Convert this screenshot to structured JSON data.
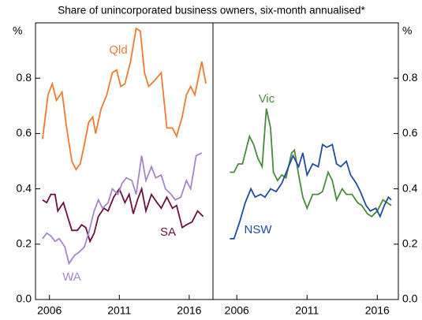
{
  "chart_data": [
    {
      "type": "line",
      "subtitle": "Share of unincorporated business owners, six-month annualised*",
      "ylabel": "%",
      "ylim": [
        0,
        1.0
      ],
      "yticks": [
        {
          "value": 0,
          "label": "0.0"
        },
        0.2,
        0.4,
        0.6,
        0.8
      ],
      "xlim": [
        2005.0,
        2017.7
      ],
      "xticks": [
        2006,
        2011,
        2016
      ],
      "series": [
        {
          "name": "Qld",
          "color": "#ef7b31",
          "x": [
            2005.5,
            2005.9,
            2006.2,
            2006.5,
            2006.9,
            2007.2,
            2007.6,
            2007.9,
            2008.2,
            2008.5,
            2008.8,
            2009.1,
            2009.3,
            2009.7,
            2010.1,
            2010.5,
            2010.8,
            2011.1,
            2011.4,
            2011.8,
            2012.2,
            2012.5,
            2012.8,
            2013.1,
            2013.5,
            2014.0,
            2014.4,
            2014.8,
            2015.1,
            2015.5,
            2015.8,
            2016.1,
            2016.4,
            2016.9,
            2017.2
          ],
          "values": [
            0.58,
            0.74,
            0.78,
            0.72,
            0.75,
            0.63,
            0.5,
            0.47,
            0.49,
            0.56,
            0.64,
            0.66,
            0.6,
            0.69,
            0.74,
            0.82,
            0.83,
            0.77,
            0.78,
            0.86,
            0.98,
            0.97,
            0.82,
            0.77,
            0.79,
            0.82,
            0.62,
            0.62,
            0.59,
            0.66,
            0.74,
            0.77,
            0.74,
            0.86,
            0.78
          ]
        },
        {
          "name": "SA",
          "color": "#6b1142",
          "x": [
            2005.5,
            2005.8,
            2006.1,
            2006.4,
            2006.6,
            2007.0,
            2007.3,
            2007.6,
            2008.0,
            2008.3,
            2008.6,
            2008.9,
            2009.2,
            2009.5,
            2009.9,
            2010.2,
            2010.6,
            2011.0,
            2011.4,
            2011.7,
            2012.0,
            2012.3,
            2012.6,
            2012.9,
            2013.3,
            2013.7,
            2014.0,
            2014.4,
            2014.8,
            2015.1,
            2015.5,
            2015.8,
            2016.2,
            2016.6,
            2017.0
          ],
          "values": [
            0.36,
            0.35,
            0.38,
            0.38,
            0.32,
            0.35,
            0.3,
            0.25,
            0.25,
            0.27,
            0.26,
            0.21,
            0.24,
            0.3,
            0.33,
            0.32,
            0.37,
            0.4,
            0.35,
            0.38,
            0.31,
            0.36,
            0.4,
            0.32,
            0.38,
            0.35,
            0.33,
            0.37,
            0.33,
            0.34,
            0.26,
            0.27,
            0.28,
            0.32,
            0.3
          ]
        },
        {
          "name": "WA",
          "color": "#a686c9",
          "x": [
            2005.5,
            2005.8,
            2006.1,
            2006.4,
            2006.7,
            2007.1,
            2007.4,
            2007.8,
            2008.1,
            2008.5,
            2008.8,
            2009.2,
            2009.5,
            2009.8,
            2010.2,
            2010.5,
            2010.9,
            2011.2,
            2011.5,
            2011.9,
            2012.2,
            2012.6,
            2012.9,
            2013.3,
            2013.6,
            2014.0,
            2014.3,
            2014.7,
            2015.0,
            2015.4,
            2015.8,
            2016.1,
            2016.5,
            2016.9
          ],
          "values": [
            0.22,
            0.24,
            0.23,
            0.21,
            0.22,
            0.19,
            0.13,
            0.16,
            0.17,
            0.19,
            0.24,
            0.32,
            0.36,
            0.33,
            0.35,
            0.4,
            0.38,
            0.42,
            0.44,
            0.43,
            0.38,
            0.52,
            0.43,
            0.48,
            0.44,
            0.45,
            0.4,
            0.38,
            0.36,
            0.37,
            0.43,
            0.4,
            0.52,
            0.53
          ]
        }
      ]
    },
    {
      "type": "line",
      "ylabel": "%",
      "ylim": [
        0,
        1.0
      ],
      "yticks": [
        {
          "value": 0,
          "label": "0.0"
        },
        0.2,
        0.4,
        0.6,
        0.8
      ],
      "xlim": [
        2004.3,
        2017.5
      ],
      "xticks": [
        2006,
        2011,
        2016
      ],
      "series": [
        {
          "name": "Vic",
          "color": "#4a8a3c",
          "x": [
            2005.5,
            2005.8,
            2006.1,
            2006.4,
            2006.9,
            2007.2,
            2007.5,
            2007.8,
            2008.1,
            2008.4,
            2008.6,
            2008.9,
            2009.2,
            2009.5,
            2009.9,
            2010.1,
            2010.4,
            2010.7,
            2011.0,
            2011.4,
            2011.8,
            2012.1,
            2012.5,
            2012.8,
            2013.1,
            2013.5,
            2013.8,
            2014.2,
            2014.6,
            2014.9,
            2015.3,
            2015.6,
            2016.0,
            2016.4,
            2016.7,
            2017.0
          ],
          "values": [
            0.46,
            0.46,
            0.49,
            0.49,
            0.59,
            0.56,
            0.51,
            0.48,
            0.69,
            0.62,
            0.46,
            0.43,
            0.45,
            0.44,
            0.53,
            0.54,
            0.45,
            0.37,
            0.33,
            0.38,
            0.38,
            0.39,
            0.46,
            0.43,
            0.36,
            0.4,
            0.38,
            0.38,
            0.35,
            0.34,
            0.31,
            0.3,
            0.32,
            0.36,
            0.35,
            0.34
          ]
        },
        {
          "name": "NSW",
          "color": "#1e4e9b",
          "x": [
            2005.5,
            2005.8,
            2006.2,
            2006.6,
            2007.0,
            2007.3,
            2007.7,
            2008.0,
            2008.4,
            2008.8,
            2009.2,
            2009.6,
            2010.0,
            2010.4,
            2010.7,
            2011.0,
            2011.4,
            2011.8,
            2012.1,
            2012.4,
            2012.8,
            2013.1,
            2013.4,
            2013.8,
            2014.1,
            2014.5,
            2014.8,
            2015.2,
            2015.5,
            2015.9,
            2016.2,
            2016.5,
            2016.8,
            2017.0
          ],
          "values": [
            0.22,
            0.22,
            0.28,
            0.35,
            0.4,
            0.37,
            0.38,
            0.37,
            0.4,
            0.39,
            0.42,
            0.47,
            0.52,
            0.48,
            0.53,
            0.45,
            0.49,
            0.48,
            0.56,
            0.55,
            0.56,
            0.49,
            0.48,
            0.5,
            0.45,
            0.42,
            0.39,
            0.34,
            0.32,
            0.33,
            0.3,
            0.34,
            0.37,
            0.36
          ]
        }
      ]
    }
  ]
}
